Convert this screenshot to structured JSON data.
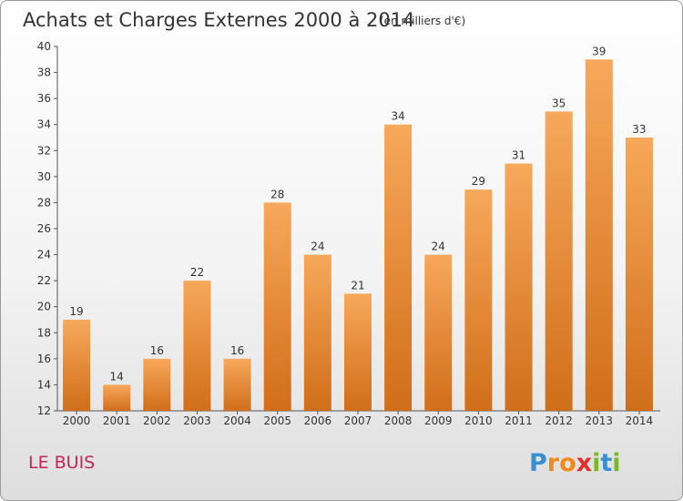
{
  "chart_data": {
    "type": "bar",
    "title": "Achats et Charges Externes 2000 à 2014",
    "subtitle": "(en milliers d'€)",
    "categories": [
      "2000",
      "2001",
      "2002",
      "2003",
      "2004",
      "2005",
      "2006",
      "2007",
      "2008",
      "2009",
      "2010",
      "2011",
      "2012",
      "2013",
      "2014"
    ],
    "values": [
      19,
      14,
      16,
      22,
      16,
      28,
      24,
      21,
      34,
      24,
      29,
      31,
      35,
      39,
      33
    ],
    "ylim": [
      12,
      40
    ],
    "yticks": [
      12,
      14,
      16,
      18,
      20,
      22,
      24,
      26,
      28,
      30,
      32,
      34,
      36,
      38,
      40
    ],
    "grid": false,
    "bar_color": "#f0903a",
    "bar_color_top": "#f7a85a",
    "bar_color_bottom": "#d06e1a"
  },
  "commune": "LE BUIS",
  "logo": {
    "text": "Proxiti",
    "letters": [
      "P",
      "r",
      "o",
      "x",
      "i",
      "t",
      "i"
    ],
    "colors": [
      "#3a8fd0",
      "#f08a1c",
      "#f08a1c",
      "#e0302a",
      "#7ab828",
      "#3a8fd0",
      "#7ab828"
    ]
  }
}
